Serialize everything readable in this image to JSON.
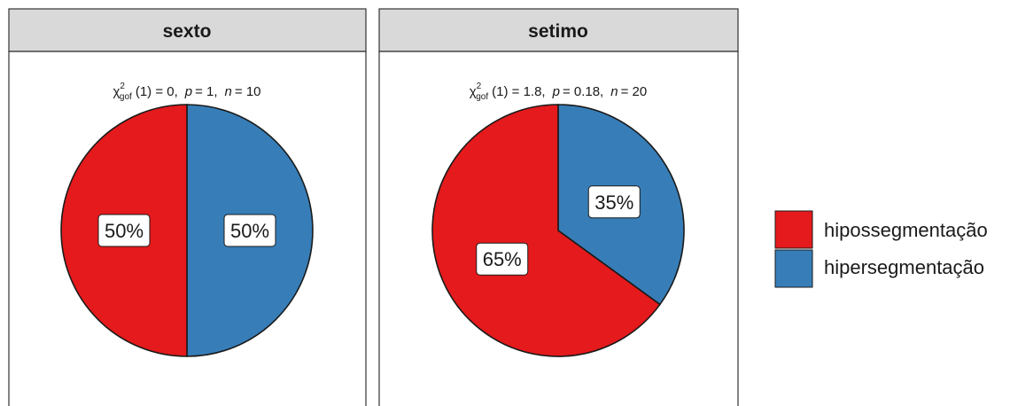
{
  "chart_data": [
    {
      "type": "pie",
      "facet": "sexto",
      "subtitle": {
        "chi": "χ",
        "sup": "2",
        "sub": "gof",
        "df": "(1) = 0,",
        "p_sym": "p",
        "p_val": "= 1,",
        "n_sym": "n",
        "n_val": "= 10"
      },
      "slices": [
        {
          "name": "hipossegmentação",
          "value": 50,
          "label": "50%",
          "color": "#E41A1C"
        },
        {
          "name": "hipersegmentação",
          "value": 50,
          "label": "50%",
          "color": "#377EB8"
        }
      ]
    },
    {
      "type": "pie",
      "facet": "setimo",
      "subtitle": {
        "chi": "χ",
        "sup": "2",
        "sub": "gof",
        "df": "(1) = 1.8,",
        "p_sym": "p",
        "p_val": "= 0.18,",
        "n_sym": "n",
        "n_val": "= 20"
      },
      "slices": [
        {
          "name": "hipossegmentação",
          "value": 65,
          "label": "65%",
          "color": "#E41A1C"
        },
        {
          "name": "hipersegmentação",
          "value": 35,
          "label": "35%",
          "color": "#377EB8"
        }
      ]
    }
  ],
  "legend": {
    "position": "right",
    "items": [
      {
        "label": "hipossegmentação",
        "color": "#E41A1C"
      },
      {
        "label": "hipersegmentação",
        "color": "#377EB8"
      }
    ]
  },
  "colors": {
    "strip_fill": "#D9D9D9",
    "panel_border": "#333333",
    "slice_border": "#1a1a1a"
  }
}
